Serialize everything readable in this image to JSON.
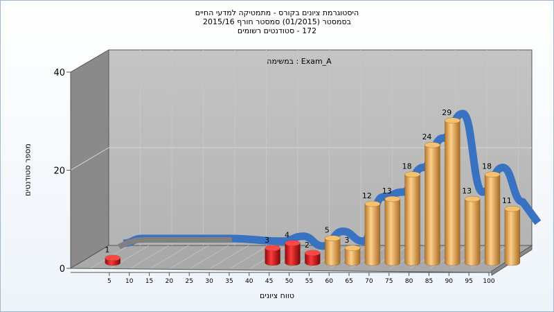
{
  "chart_data": {
    "type": "bar",
    "title_lines": [
      "היסטוגרמת ציונים בקורס - מתמטיקה למדעי החיים",
      "בסמסטר  (01/2015)  סמסטר חורף 2015/16",
      "172 - סטודנטים רשומים"
    ],
    "subtitle": "במשימה : Exam_A",
    "xlabel": "טווח ציונים",
    "ylabel": "מספר סטודנטים",
    "x_ticks": [
      "5",
      "10",
      "15",
      "20",
      "25",
      "30",
      "35",
      "40",
      "45",
      "50",
      "55",
      "60",
      "65",
      "70",
      "75",
      "80",
      "85",
      "90",
      "95",
      "100"
    ],
    "y_ticks": [
      "0",
      "20",
      "40"
    ],
    "ylim": [
      0,
      40
    ],
    "bars": [
      {
        "x": 5,
        "value": 1,
        "color": "red"
      },
      {
        "x": 45,
        "value": 3,
        "color": "red"
      },
      {
        "x": 50,
        "value": 4,
        "color": "red"
      },
      {
        "x": 55,
        "value": 2,
        "color": "red"
      },
      {
        "x": 60,
        "value": 5,
        "color": "orange"
      },
      {
        "x": 65,
        "value": 3,
        "color": "orange"
      },
      {
        "x": 70,
        "value": 12,
        "color": "orange"
      },
      {
        "x": 75,
        "value": 13,
        "color": "orange"
      },
      {
        "x": 80,
        "value": 18,
        "color": "orange"
      },
      {
        "x": 85,
        "value": 24,
        "color": "orange"
      },
      {
        "x": 90,
        "value": 29,
        "color": "orange"
      },
      {
        "x": 95,
        "value": 13,
        "color": "orange"
      },
      {
        "x": 100,
        "value": 18,
        "color": "orange"
      },
      {
        "x": 105,
        "value": 11,
        "color": "orange"
      }
    ],
    "colors": {
      "red": "#d9141b",
      "orange": "#e8a447",
      "trend": "#3a72c2",
      "trend_flat": "#808080",
      "wall": "#b4b4b4",
      "side_wall": "#8a8a8a",
      "floor": "#a9a9a9"
    }
  }
}
